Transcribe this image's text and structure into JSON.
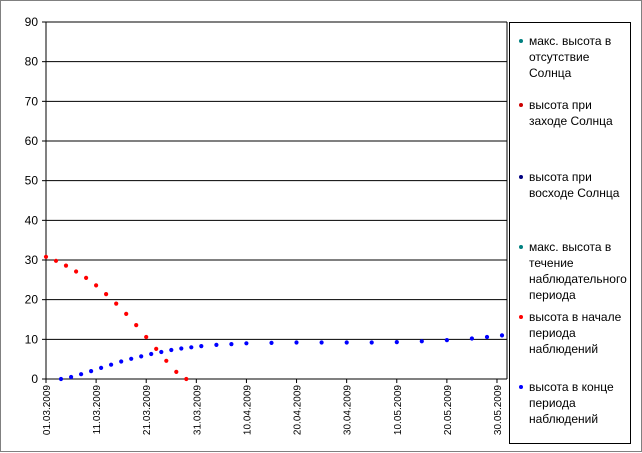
{
  "chart_data": {
    "type": "scatter",
    "title": "",
    "xlabel": "",
    "ylabel": "",
    "ylim": [
      0,
      90
    ],
    "xlim": [
      "01.03.2009",
      "01.06.2009"
    ],
    "y_ticks": [
      0,
      10,
      20,
      30,
      40,
      50,
      60,
      70,
      80,
      90
    ],
    "x_ticks": [
      "01.03.2009",
      "11.03.2009",
      "21.03.2009",
      "31.03.2009",
      "10.04.2009",
      "20.04.2009",
      "30.04.2009",
      "10.05.2009",
      "20.05.2009",
      "30.05.2009"
    ],
    "grid": "horizontal",
    "legend_position": "right",
    "series": [
      {
        "name": "макс. высота в отсутствие Солнца",
        "color": "#008080",
        "points": []
      },
      {
        "name": "высота при заходе Солнца",
        "color": "#cc0000",
        "points": []
      },
      {
        "name": "высота при восходе Солнца",
        "color": "#000080",
        "points": []
      },
      {
        "name": "макс. высота в течение наблюдательного периода",
        "color": "#008080",
        "points": []
      },
      {
        "name": "высота в начале периода наблюдений",
        "color": "#ff0000",
        "points": [
          [
            "01.03.2009",
            30.8
          ],
          [
            "03.03.2009",
            29.8
          ],
          [
            "05.03.2009",
            28.6
          ],
          [
            "07.03.2009",
            27.1
          ],
          [
            "09.03.2009",
            25.5
          ],
          [
            "11.03.2009",
            23.6
          ],
          [
            "13.03.2009",
            21.4
          ],
          [
            "15.03.2009",
            19.0
          ],
          [
            "17.03.2009",
            16.4
          ],
          [
            "19.03.2009",
            13.6
          ],
          [
            "21.03.2009",
            10.6
          ],
          [
            "23.03.2009",
            7.6
          ],
          [
            "25.03.2009",
            4.6
          ],
          [
            "27.03.2009",
            1.8
          ],
          [
            "29.03.2009",
            0.0
          ]
        ]
      },
      {
        "name": "высота в конце периода наблюдений",
        "color": "#0000ff",
        "points": [
          [
            "04.03.2009",
            0.0
          ],
          [
            "06.03.2009",
            0.5
          ],
          [
            "08.03.2009",
            1.2
          ],
          [
            "10.03.2009",
            2.0
          ],
          [
            "12.03.2009",
            2.8
          ],
          [
            "14.03.2009",
            3.6
          ],
          [
            "16.03.2009",
            4.4
          ],
          [
            "18.03.2009",
            5.1
          ],
          [
            "20.03.2009",
            5.7
          ],
          [
            "22.03.2009",
            6.3
          ],
          [
            "24.03.2009",
            6.8
          ],
          [
            "26.03.2009",
            7.3
          ],
          [
            "28.03.2009",
            7.7
          ],
          [
            "30.03.2009",
            8.0
          ],
          [
            "01.04.2009",
            8.3
          ],
          [
            "04.04.2009",
            8.6
          ],
          [
            "07.04.2009",
            8.8
          ],
          [
            "10.04.2009",
            9.0
          ],
          [
            "15.04.2009",
            9.1
          ],
          [
            "20.04.2009",
            9.2
          ],
          [
            "25.04.2009",
            9.2
          ],
          [
            "30.04.2009",
            9.2
          ],
          [
            "05.05.2009",
            9.2
          ],
          [
            "10.05.2009",
            9.3
          ],
          [
            "15.05.2009",
            9.5
          ],
          [
            "20.05.2009",
            9.8
          ],
          [
            "25.05.2009",
            10.2
          ],
          [
            "28.05.2009",
            10.6
          ],
          [
            "31.05.2009",
            11.0
          ]
        ]
      }
    ]
  }
}
